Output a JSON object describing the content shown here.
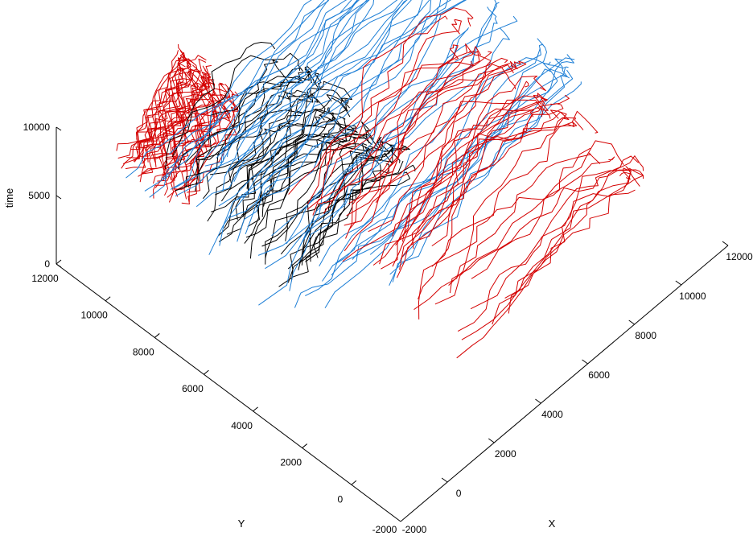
{
  "chart_data": {
    "type": "line",
    "projection": "3d",
    "title": "",
    "xlabel": "X",
    "ylabel": "Y",
    "zlabel": "time",
    "xlim": [
      -2000,
      12000
    ],
    "ylim": [
      -2000,
      12000
    ],
    "zlim": [
      0,
      10000
    ],
    "x_ticks": [
      "-2000",
      "0",
      "2000",
      "4000",
      "6000",
      "8000",
      "10000",
      "12000"
    ],
    "y_ticks": [
      "-2000",
      "0",
      "2000",
      "4000",
      "6000",
      "8000",
      "10000",
      "12000"
    ],
    "z_ticks": [
      "0",
      "5000",
      "10000"
    ],
    "grid": false,
    "legend": "none",
    "series_colors": [
      "#d40000",
      "#000000",
      "#1e7fd6"
    ],
    "trajectory_bundles": [
      {
        "color": "#d40000",
        "x_range": [
          200,
          3000
        ],
        "y_range": [
          9200,
          11800
        ],
        "z_range": [
          4000,
          9500
        ],
        "count": 45
      },
      {
        "color": "#000000",
        "x_range": [
          1500,
          6500
        ],
        "y_range": [
          5500,
          11500
        ],
        "z_range": [
          500,
          9800
        ],
        "count": 45
      },
      {
        "color": "#1e7fd6",
        "x_range": [
          600,
          11500
        ],
        "y_range": [
          3500,
          11800
        ],
        "z_range": [
          800,
          7000
        ],
        "count": 45
      },
      {
        "color": "#d40000",
        "x_range": [
          3000,
          11000
        ],
        "y_range": [
          500,
          8500
        ],
        "z_range": [
          400,
          9000
        ],
        "count": 45
      }
    ]
  }
}
